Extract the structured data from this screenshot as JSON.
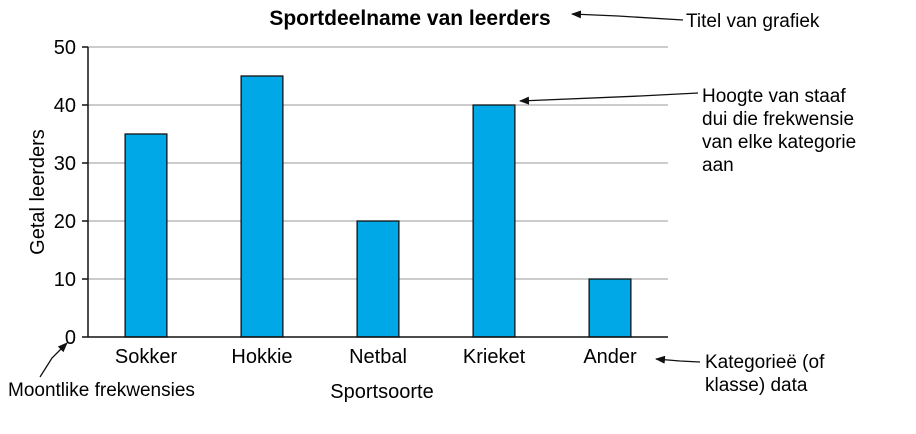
{
  "chart_data": {
    "type": "bar",
    "title": "Sportdeelname van leerders",
    "xlabel": "Sportsoorte",
    "ylabel": "Getal leerders",
    "categories": [
      "Sokker",
      "Hokkie",
      "Netbal",
      "Krieket",
      "Ander"
    ],
    "values": [
      35,
      45,
      20,
      40,
      10
    ],
    "ylim": [
      0,
      50
    ],
    "yticks": [
      0,
      10,
      20,
      30,
      40,
      50
    ],
    "grid": true,
    "bar_color": "#00a8e8",
    "annotations": {
      "title": [
        "Titel van grafiek"
      ],
      "bar_height": [
        "Hoogte van staaf",
        "dui die frekwensie",
        "van elke kategorie",
        "aan"
      ],
      "categories": [
        "Kategorieë (of",
        "klasse) data"
      ],
      "frequencies": [
        "Moontlike frekwensies"
      ]
    }
  }
}
